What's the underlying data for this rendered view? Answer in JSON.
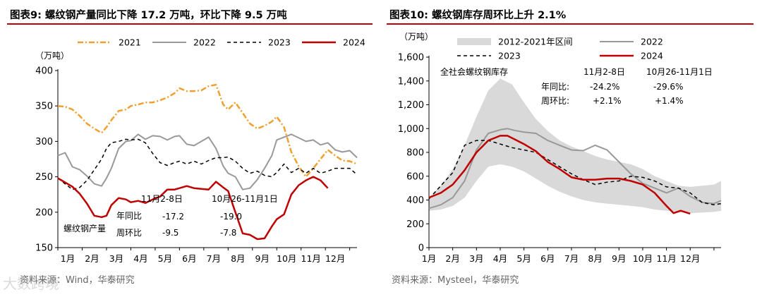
{
  "left": {
    "title": "图表9:  螺纹钢产量同比下降 17.2 万吨，环比下降 9.5 万吨",
    "source": "资料来源：Wind，华泰研究",
    "chart_data": {
      "type": "line",
      "unit_label": "（万吨）",
      "ylim": [
        150,
        400
      ],
      "yticks": [
        150,
        200,
        250,
        300,
        350,
        400
      ],
      "xlim": [
        0,
        12.3
      ],
      "xtick_labels": [
        "1月",
        "2月",
        "3月",
        "4月",
        "5月",
        "6月",
        "7月",
        "8月",
        "9月",
        "10月",
        "11月",
        "12月"
      ],
      "series": [
        {
          "name": "2021",
          "color": "#f0a030",
          "dash": "8,3,2,3",
          "width": 2.5,
          "x": [
            0.0,
            0.3,
            0.6,
            0.9,
            1.2,
            1.5,
            1.8,
            2.0,
            2.2,
            2.5,
            2.8,
            3.0,
            3.3,
            3.6,
            3.9,
            4.2,
            4.5,
            4.8,
            5.0,
            5.3,
            5.6,
            5.9,
            6.2,
            6.5,
            6.8,
            7.0,
            7.3,
            7.6,
            7.9,
            8.2,
            8.5,
            8.8,
            9.0,
            9.3,
            9.6,
            9.9,
            10.2,
            10.5,
            10.8,
            11.1,
            11.4,
            11.7,
            12.0,
            12.3
          ],
          "y": [
            350,
            349,
            345,
            336,
            325,
            318,
            312,
            320,
            330,
            343,
            345,
            350,
            352,
            355,
            355,
            358,
            362,
            368,
            375,
            371,
            371,
            372,
            378,
            380,
            352,
            345,
            355,
            340,
            325,
            318,
            322,
            328,
            335,
            320,
            285,
            265,
            250,
            262,
            275,
            288,
            280,
            273,
            272,
            268
          ]
        },
        {
          "name": "2022",
          "color": "#999999",
          "dash": "",
          "width": 2,
          "x": [
            0.0,
            0.3,
            0.6,
            0.9,
            1.2,
            1.5,
            1.8,
            2.0,
            2.2,
            2.5,
            2.8,
            3.0,
            3.3,
            3.6,
            3.9,
            4.2,
            4.5,
            4.8,
            5.0,
            5.3,
            5.6,
            5.9,
            6.2,
            6.5,
            6.8,
            7.0,
            7.3,
            7.6,
            7.9,
            8.2,
            8.5,
            8.8,
            9.0,
            9.3,
            9.6,
            9.9,
            10.2,
            10.5,
            10.8,
            11.1,
            11.4,
            11.7,
            12.0,
            12.3
          ],
          "y": [
            280,
            284,
            264,
            260,
            251,
            240,
            237,
            248,
            262,
            290,
            300,
            301,
            310,
            303,
            308,
            307,
            302,
            307,
            308,
            296,
            294,
            300,
            306,
            290,
            265,
            255,
            250,
            232,
            234,
            246,
            262,
            280,
            302,
            306,
            310,
            305,
            300,
            302,
            295,
            298,
            288,
            285,
            287,
            277
          ]
        },
        {
          "name": "2023",
          "color": "#000000",
          "dash": "5,4",
          "width": 1.5,
          "x": [
            0.0,
            0.3,
            0.6,
            0.9,
            1.2,
            1.5,
            1.8,
            2.0,
            2.2,
            2.5,
            2.8,
            3.0,
            3.3,
            3.6,
            3.9,
            4.2,
            4.5,
            4.8,
            5.0,
            5.3,
            5.6,
            5.9,
            6.2,
            6.5,
            6.8,
            7.0,
            7.3,
            7.6,
            7.9,
            8.2,
            8.5,
            8.8,
            9.0,
            9.3,
            9.6,
            9.9,
            10.2,
            10.5,
            10.8,
            11.1,
            11.4,
            11.7,
            12.0,
            12.3
          ],
          "y": [
            248,
            240,
            232,
            235,
            245,
            260,
            275,
            290,
            298,
            300,
            303,
            302,
            303,
            298,
            283,
            270,
            266,
            270,
            272,
            268,
            272,
            268,
            273,
            277,
            277,
            278,
            272,
            262,
            255,
            258,
            252,
            250,
            256,
            268,
            256,
            262,
            255,
            262,
            255,
            258,
            262,
            262,
            262,
            253
          ]
        },
        {
          "name": "2024",
          "color": "#c00000",
          "dash": "",
          "width": 2.5,
          "x": [
            0.0,
            0.3,
            0.6,
            0.9,
            1.2,
            1.5,
            1.8,
            2.0,
            2.2,
            2.5,
            2.8,
            3.0,
            3.3,
            3.6,
            3.9,
            4.2,
            4.5,
            4.8,
            5.0,
            5.3,
            5.6,
            5.9,
            6.2,
            6.5,
            6.8,
            7.0,
            7.3,
            7.6,
            7.9,
            8.2,
            8.5,
            8.8,
            9.0,
            9.3,
            9.6,
            9.9,
            10.2,
            10.5,
            10.8,
            11.1
          ],
          "y": [
            248,
            242,
            236,
            226,
            212,
            195,
            193,
            195,
            210,
            220,
            218,
            214,
            216,
            213,
            218,
            222,
            232,
            232,
            234,
            237,
            234,
            233,
            232,
            243,
            235,
            230,
            200,
            170,
            168,
            162,
            163,
            180,
            190,
            197,
            225,
            238,
            245,
            250,
            245,
            234
          ]
        }
      ],
      "annotations": {
        "head1": "11月2-8日",
        "head2": "10月26-11月1日",
        "series_label": "螺纹钢产量",
        "row1_label": "年同比",
        "row1_v1": "-17.2",
        "row1_v2": "-19.0",
        "row2_label": "周环比",
        "row2_v1": "-9.5",
        "row2_v2": "-7.8"
      }
    }
  },
  "right": {
    "title": "图表10:  螺纹钢库存周环比上升 2.1%",
    "source": "资料来源：Mysteel，华泰研究",
    "chart_data": {
      "type": "area",
      "unit_label": "（万吨）",
      "ylim": [
        0,
        1600
      ],
      "yticks": [
        0,
        200,
        400,
        600,
        800,
        1000,
        1200,
        1400,
        1600
      ],
      "ytick_labels": [
        "0",
        "200",
        "400",
        "600",
        "800",
        "1,000",
        "1,200",
        "1,400",
        "1,600"
      ],
      "xlim": [
        0,
        12.3
      ],
      "xtick_labels": [
        "1月",
        "2月",
        "3月",
        "4月",
        "5月",
        "6月",
        "7月",
        "8月",
        "9月",
        "10月",
        "11月",
        "12月"
      ],
      "band": {
        "name": "2012-2021年区间",
        "color": "#d9d9d9",
        "x": [
          0.0,
          0.5,
          1.0,
          1.5,
          2.0,
          2.5,
          3.0,
          3.5,
          4.0,
          4.5,
          5.0,
          5.5,
          6.0,
          6.5,
          7.0,
          7.5,
          8.0,
          8.5,
          9.0,
          9.5,
          10.0,
          10.5,
          11.0,
          11.5,
          12.0,
          12.3
        ],
        "upper": [
          420,
          520,
          660,
          860,
          1100,
          1320,
          1420,
          1370,
          1220,
          1080,
          980,
          900,
          850,
          810,
          770,
          740,
          720,
          700,
          660,
          600,
          560,
          520,
          510,
          520,
          530,
          560
        ],
        "lower": [
          310,
          320,
          350,
          420,
          560,
          680,
          700,
          680,
          640,
          580,
          520,
          470,
          430,
          400,
          380,
          370,
          360,
          350,
          340,
          320,
          310,
          300,
          290,
          295,
          300,
          310
        ]
      },
      "series": [
        {
          "name": "2022",
          "color": "#999999",
          "dash": "",
          "width": 2,
          "x": [
            0.0,
            0.5,
            1.0,
            1.5,
            2.0,
            2.5,
            3.0,
            3.3,
            3.6,
            4.0,
            4.5,
            5.0,
            5.5,
            6.0,
            6.5,
            7.0,
            7.5,
            8.0,
            8.5,
            9.0,
            9.5,
            10.0,
            10.5,
            11.0,
            11.5,
            12.0,
            12.3
          ],
          "y": [
            330,
            360,
            420,
            560,
            820,
            960,
            990,
            1000,
            985,
            970,
            960,
            900,
            860,
            820,
            815,
            860,
            820,
            720,
            620,
            540,
            500,
            460,
            500,
            430,
            380,
            370,
            395
          ]
        },
        {
          "name": "2023",
          "color": "#000000",
          "dash": "5,4",
          "width": 1.5,
          "x": [
            0.0,
            0.5,
            1.0,
            1.5,
            2.0,
            2.5,
            3.0,
            3.5,
            4.0,
            4.5,
            5.0,
            5.5,
            6.0,
            6.5,
            7.0,
            7.5,
            8.0,
            8.5,
            9.0,
            9.5,
            10.0,
            10.5,
            11.0,
            11.5,
            12.0,
            12.3
          ],
          "y": [
            410,
            520,
            630,
            860,
            900,
            900,
            870,
            840,
            820,
            800,
            740,
            680,
            620,
            570,
            530,
            550,
            560,
            600,
            590,
            560,
            510,
            500,
            460,
            380,
            360,
            370
          ]
        },
        {
          "name": "2024",
          "color": "#c00000",
          "dash": "",
          "width": 2.5,
          "x": [
            0.0,
            0.5,
            1.0,
            1.5,
            2.0,
            2.5,
            3.0,
            3.3,
            3.6,
            4.0,
            4.5,
            5.0,
            5.5,
            6.0,
            6.5,
            7.0,
            7.5,
            8.0,
            8.5,
            9.0,
            9.5,
            10.0,
            10.3,
            10.6,
            11.0
          ],
          "y": [
            420,
            460,
            530,
            650,
            800,
            900,
            940,
            940,
            910,
            870,
            810,
            720,
            660,
            590,
            570,
            570,
            580,
            580,
            560,
            530,
            460,
            350,
            290,
            310,
            285
          ]
        }
      ],
      "annotations": {
        "label": "全社会螺纹钢库存",
        "head1": "11月2-8日",
        "head2": "10月26-11月1日",
        "row1_label": "年同比:",
        "row1_v1": "-24.2%",
        "row1_v2": "-29.6%",
        "row2_label": "周环比:",
        "row2_v1": "+2.1%",
        "row2_v2": "+1.4%"
      }
    }
  },
  "watermark": "大数跨境"
}
